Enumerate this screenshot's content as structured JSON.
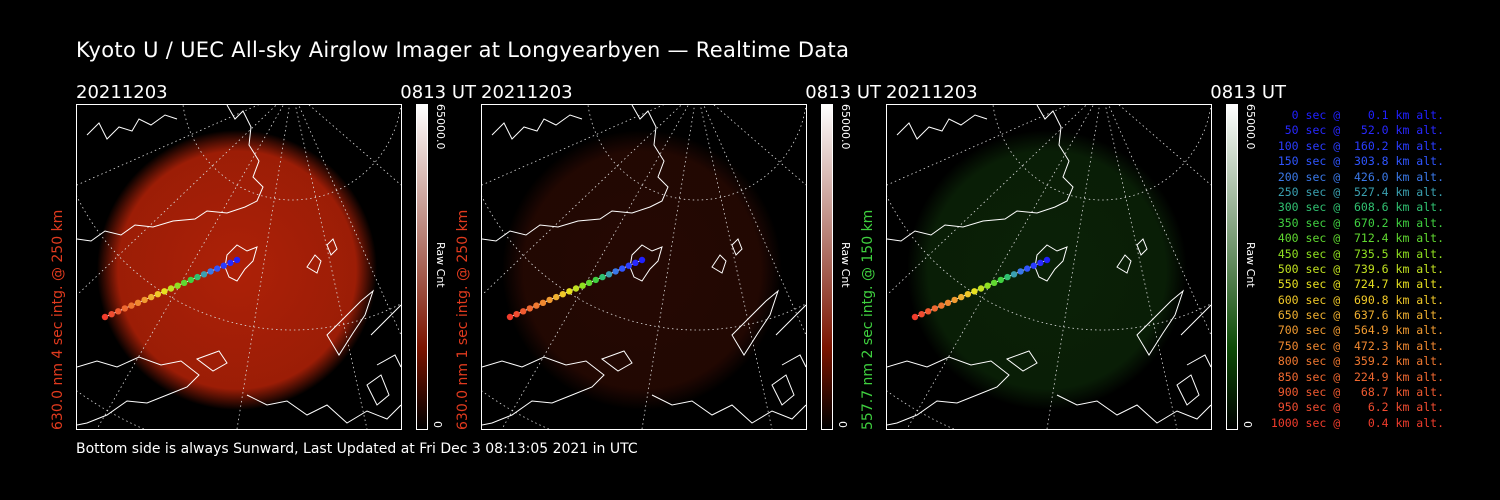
{
  "title": "Kyoto U / UEC All-sky Airglow Imager at Longyearbyen — Realtime Data",
  "footer": "Bottom side is always Sunward, Last Updated at Fri Dec  3 08:13:05 2021 in UTC",
  "panels": [
    {
      "date": "20211203",
      "time": "0813 UT",
      "side_label": "630.0 nm 4 sec intg. @ 250 km",
      "side_color": "#e03a1e",
      "cbar_max": "65000.0",
      "cbar_min": "0",
      "cbar_unit": "Raw Cnt",
      "glow": "#c02408",
      "glow_strength": 0.9,
      "bar_top": "#ffffff",
      "bar_bottom": "#7a1400"
    },
    {
      "date": "20211203",
      "time": "0813 UT",
      "side_label": "630.0 nm 1 sec intg. @ 250 km",
      "side_color": "#e03a1e",
      "cbar_max": "65000.0",
      "cbar_min": "0",
      "cbar_unit": "Raw Cnt",
      "glow": "#6a1808",
      "glow_strength": 0.35,
      "bar_top": "#ffffff",
      "bar_bottom": "#7a1400"
    },
    {
      "date": "20211203",
      "time": "0813 UT",
      "side_label": "557.7 nm 2 sec intg. @ 150 km",
      "side_color": "#3fd03f",
      "cbar_max": "65000.0",
      "cbar_min": "0",
      "cbar_unit": "Raw Cnt",
      "glow": "#1d5e14",
      "glow_strength": 0.35,
      "bar_top": "#ffffff",
      "bar_bottom": "#0d4a06"
    }
  ],
  "legend": [
    {
      "text": "   0 sec @    0.1 km alt.",
      "color": "#2020ff"
    },
    {
      "text": "  50 sec @   52.0 km alt.",
      "color": "#2828ff"
    },
    {
      "text": " 100 sec @  160.2 km alt.",
      "color": "#2a3cff"
    },
    {
      "text": " 150 sec @  303.8 km alt.",
      "color": "#2f55ff"
    },
    {
      "text": " 200 sec @  426.0 km alt.",
      "color": "#3a78e8"
    },
    {
      "text": " 250 sec @  527.4 km alt.",
      "color": "#3aa0b0"
    },
    {
      "text": " 300 sec @  608.6 km alt.",
      "color": "#30c070"
    },
    {
      "text": " 350 sec @  670.2 km alt.",
      "color": "#40d040"
    },
    {
      "text": " 400 sec @  712.4 km alt.",
      "color": "#60d830"
    },
    {
      "text": " 450 sec @  735.5 km alt.",
      "color": "#90e020"
    },
    {
      "text": " 500 sec @  739.6 km alt.",
      "color": "#c0e020"
    },
    {
      "text": " 550 sec @  724.7 km alt.",
      "color": "#e6e020"
    },
    {
      "text": " 600 sec @  690.8 km alt.",
      "color": "#f0c828"
    },
    {
      "text": " 650 sec @  637.6 km alt.",
      "color": "#f0b030"
    },
    {
      "text": " 700 sec @  564.9 km alt.",
      "color": "#f09a30"
    },
    {
      "text": " 750 sec @  472.3 km alt.",
      "color": "#f08830"
    },
    {
      "text": " 800 sec @  359.2 km alt.",
      "color": "#f07830"
    },
    {
      "text": " 850 sec @  224.9 km alt.",
      "color": "#f06830"
    },
    {
      "text": " 900 sec @   68.7 km alt.",
      "color": "#f05a30"
    },
    {
      "text": " 950 sec @    6.2 km alt.",
      "color": "#f04c30"
    },
    {
      "text": "1000 sec @    0.4 km alt.",
      "color": "#f03c2c"
    }
  ]
}
